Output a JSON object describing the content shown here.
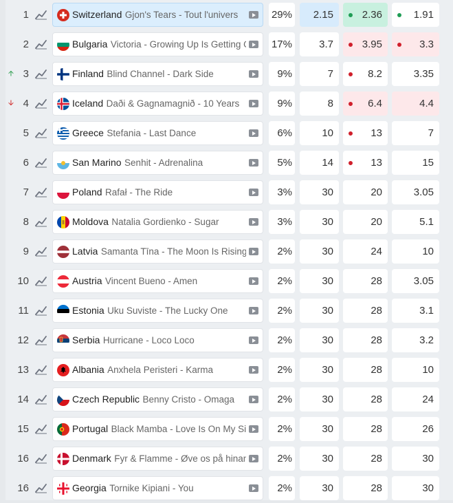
{
  "rows": [
    {
      "rank": "1",
      "trend_dir": "",
      "country": "Switzerland",
      "song": "Gjon's Tears - Tout l'univers",
      "flag": "switzerland-flag",
      "highlight": true,
      "pct": "29%",
      "o1": "2.15",
      "o1_bg": "blue",
      "o2": "2.36",
      "o2_bg": "green",
      "o2_dot": "green",
      "o3": "1.91",
      "o3_bg": "",
      "o3_dot": "green"
    },
    {
      "rank": "2",
      "trend_dir": "",
      "country": "Bulgaria",
      "song": "Victoria - Growing Up Is Getting Old",
      "flag": "bulgaria-flag",
      "highlight": false,
      "pct": "17%",
      "o1": "3.7",
      "o1_bg": "",
      "o2": "3.95",
      "o2_bg": "pink",
      "o2_dot": "red",
      "o3": "3.3",
      "o3_bg": "pink",
      "o3_dot": "red"
    },
    {
      "rank": "3",
      "trend_dir": "up",
      "country": "Finland",
      "song": "Blind Channel - Dark Side",
      "flag": "finland-flag",
      "highlight": false,
      "pct": "9%",
      "o1": "7",
      "o1_bg": "",
      "o2": "8.2",
      "o2_bg": "",
      "o2_dot": "red",
      "o3": "3.35",
      "o3_bg": "",
      "o3_dot": ""
    },
    {
      "rank": "4",
      "trend_dir": "down",
      "country": "Iceland",
      "song": "Daði & Gagnamagnið - 10 Years",
      "flag": "iceland-flag",
      "highlight": false,
      "pct": "9%",
      "o1": "8",
      "o1_bg": "",
      "o2": "6.4",
      "o2_bg": "pink",
      "o2_dot": "red",
      "o3": "4.4",
      "o3_bg": "pink",
      "o3_dot": ""
    },
    {
      "rank": "5",
      "trend_dir": "",
      "country": "Greece",
      "song": "Stefania - Last Dance",
      "flag": "greece-flag",
      "highlight": false,
      "pct": "6%",
      "o1": "10",
      "o1_bg": "",
      "o2": "13",
      "o2_bg": "",
      "o2_dot": "red",
      "o3": "7",
      "o3_bg": "",
      "o3_dot": ""
    },
    {
      "rank": "6",
      "trend_dir": "",
      "country": "San Marino",
      "song": "Senhit - Adrenalina",
      "flag": "san-marino-flag",
      "highlight": false,
      "pct": "5%",
      "o1": "14",
      "o1_bg": "",
      "o2": "13",
      "o2_bg": "",
      "o2_dot": "red",
      "o3": "15",
      "o3_bg": "",
      "o3_dot": ""
    },
    {
      "rank": "7",
      "trend_dir": "",
      "country": "Poland",
      "song": "Rafał - The Ride",
      "flag": "poland-flag",
      "highlight": false,
      "pct": "3%",
      "o1": "30",
      "o1_bg": "",
      "o2": "20",
      "o2_bg": "",
      "o2_dot": "",
      "o3": "3.05",
      "o3_bg": "",
      "o3_dot": ""
    },
    {
      "rank": "8",
      "trend_dir": "",
      "country": "Moldova",
      "song": "Natalia Gordienko - Sugar",
      "flag": "moldova-flag",
      "highlight": false,
      "pct": "3%",
      "o1": "30",
      "o1_bg": "",
      "o2": "20",
      "o2_bg": "",
      "o2_dot": "",
      "o3": "5.1",
      "o3_bg": "",
      "o3_dot": ""
    },
    {
      "rank": "9",
      "trend_dir": "",
      "country": "Latvia",
      "song": "Samanta Tīna - The Moon Is Rising",
      "flag": "latvia-flag",
      "highlight": false,
      "pct": "2%",
      "o1": "30",
      "o1_bg": "",
      "o2": "24",
      "o2_bg": "",
      "o2_dot": "",
      "o3": "10",
      "o3_bg": "",
      "o3_dot": ""
    },
    {
      "rank": "10",
      "trend_dir": "",
      "country": "Austria",
      "song": "Vincent Bueno - Amen",
      "flag": "austria-flag",
      "highlight": false,
      "pct": "2%",
      "o1": "30",
      "o1_bg": "",
      "o2": "28",
      "o2_bg": "",
      "o2_dot": "",
      "o3": "3.05",
      "o3_bg": "",
      "o3_dot": ""
    },
    {
      "rank": "11",
      "trend_dir": "",
      "country": "Estonia",
      "song": "Uku Suviste - The Lucky One",
      "flag": "estonia-flag",
      "highlight": false,
      "pct": "2%",
      "o1": "30",
      "o1_bg": "",
      "o2": "28",
      "o2_bg": "",
      "o2_dot": "",
      "o3": "3.1",
      "o3_bg": "",
      "o3_dot": ""
    },
    {
      "rank": "12",
      "trend_dir": "",
      "country": "Serbia",
      "song": "Hurricane - Loco Loco",
      "flag": "serbia-flag",
      "highlight": false,
      "pct": "2%",
      "o1": "30",
      "o1_bg": "",
      "o2": "28",
      "o2_bg": "",
      "o2_dot": "",
      "o3": "3.2",
      "o3_bg": "",
      "o3_dot": ""
    },
    {
      "rank": "13",
      "trend_dir": "",
      "country": "Albania",
      "song": "Anxhela Peristeri - Karma",
      "flag": "albania-flag",
      "highlight": false,
      "pct": "2%",
      "o1": "30",
      "o1_bg": "",
      "o2": "28",
      "o2_bg": "",
      "o2_dot": "",
      "o3": "10",
      "o3_bg": "",
      "o3_dot": ""
    },
    {
      "rank": "14",
      "trend_dir": "",
      "country": "Czech Republic",
      "song": "Benny Cristo - Omaga",
      "flag": "czech-republic-flag",
      "highlight": false,
      "pct": "2%",
      "o1": "30",
      "o1_bg": "",
      "o2": "28",
      "o2_bg": "",
      "o2_dot": "",
      "o3": "24",
      "o3_bg": "",
      "o3_dot": ""
    },
    {
      "rank": "15",
      "trend_dir": "",
      "country": "Portugal",
      "song": "Black Mamba - Love Is On My Side",
      "flag": "portugal-flag",
      "highlight": false,
      "pct": "2%",
      "o1": "30",
      "o1_bg": "",
      "o2": "28",
      "o2_bg": "",
      "o2_dot": "",
      "o3": "26",
      "o3_bg": "",
      "o3_dot": ""
    },
    {
      "rank": "16",
      "trend_dir": "",
      "country": "Denmark",
      "song": "Fyr & Flamme - Øve os på hinanden",
      "flag": "denmark-flag",
      "highlight": false,
      "pct": "2%",
      "o1": "30",
      "o1_bg": "",
      "o2": "28",
      "o2_bg": "",
      "o2_dot": "",
      "o3": "30",
      "o3_bg": "",
      "o3_dot": ""
    },
    {
      "rank": "16",
      "trend_dir": "",
      "country": "Georgia",
      "song": "Tornike Kipiani - You",
      "flag": "georgia-flag",
      "highlight": false,
      "pct": "2%",
      "o1": "30",
      "o1_bg": "",
      "o2": "28",
      "o2_bg": "",
      "o2_dot": "",
      "o3": "30",
      "o3_bg": "",
      "o3_dot": ""
    }
  ],
  "colors": {
    "highlight_blue": "#dbeefd",
    "odds_blue": "#d7ebfc",
    "odds_green": "#c8f0df",
    "odds_pink": "#fde8ea",
    "dot_green": "#1f9d55",
    "dot_red": "#d0202c",
    "trend_up": "#2e9e4f",
    "trend_down": "#d02b2b"
  }
}
